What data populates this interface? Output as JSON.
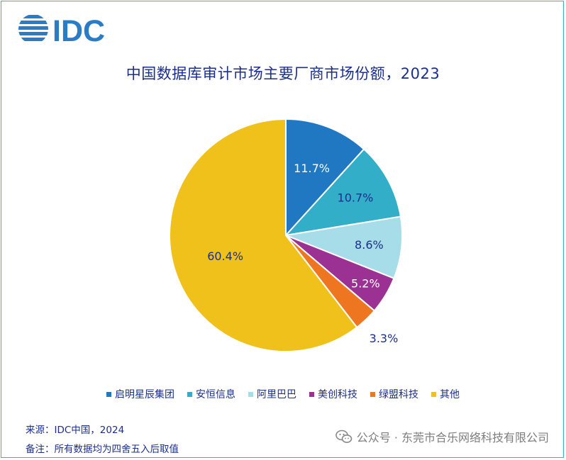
{
  "logo": {
    "text": "IDC",
    "color": "#2a7cc7"
  },
  "chart_data": {
    "type": "pie",
    "title": "中国数据库审计市场主要厂商市场份额，2023",
    "categories": [
      "启明星辰集团",
      "安恒信息",
      "阿里巴巴",
      "美创科技",
      "绿盟科技",
      "其他"
    ],
    "values": [
      11.7,
      10.7,
      8.6,
      5.2,
      3.3,
      60.4
    ],
    "labels": [
      "11.7%",
      "10.7%",
      "8.6%",
      "5.2%",
      "3.3%",
      "60.4%"
    ],
    "colors": [
      "#1f78c1",
      "#33aec9",
      "#a6dde8",
      "#9b3293",
      "#ee7621",
      "#f1c11b"
    ],
    "label_colors": [
      "#ffffff",
      "#1b2f8a",
      "#1b2f8a",
      "#ffffff",
      "#1b2f8a",
      "#1b2f8a"
    ],
    "start_angle_deg": 0,
    "direction": "clockwise",
    "legend_position": "bottom"
  },
  "footer": {
    "source": "来源：IDC中国，2024",
    "remark": "备注：所有数据均为四舍五入后取值"
  },
  "watermark": {
    "text": "公众号 · 东莞市合乐网络科技有限公司"
  }
}
